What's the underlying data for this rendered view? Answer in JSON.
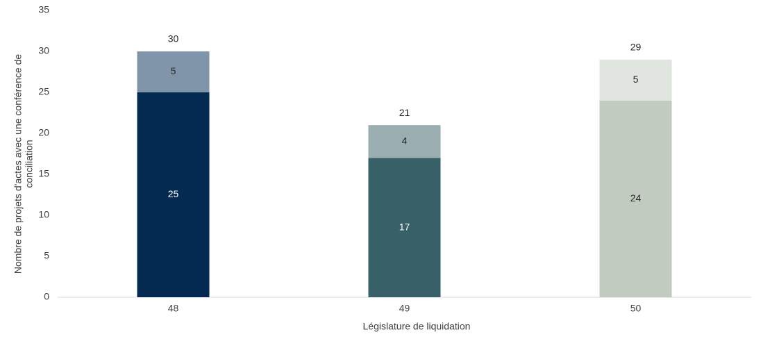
{
  "chart_data": {
    "type": "stacked_bar",
    "xlabel": "Législature de liquidation",
    "ylabel": [
      "Nombre de projets d'actes avec une conférence de",
      "conciliation"
    ],
    "categories": [
      "48",
      "49",
      "50"
    ],
    "series": [
      {
        "values": [
          25,
          17,
          24
        ],
        "colors": [
          "#052a52",
          "#386068",
          "#c2cbc0"
        ]
      },
      {
        "values": [
          5,
          4,
          5
        ],
        "colors": [
          "#8095aa",
          "#9aadb0",
          "#e1e5e0"
        ]
      }
    ],
    "totals": [
      30,
      21,
      29
    ],
    "ylim": [
      0,
      35
    ],
    "yticks": [
      0,
      5,
      10,
      15,
      20,
      25,
      30,
      35
    ],
    "grid": false
  }
}
